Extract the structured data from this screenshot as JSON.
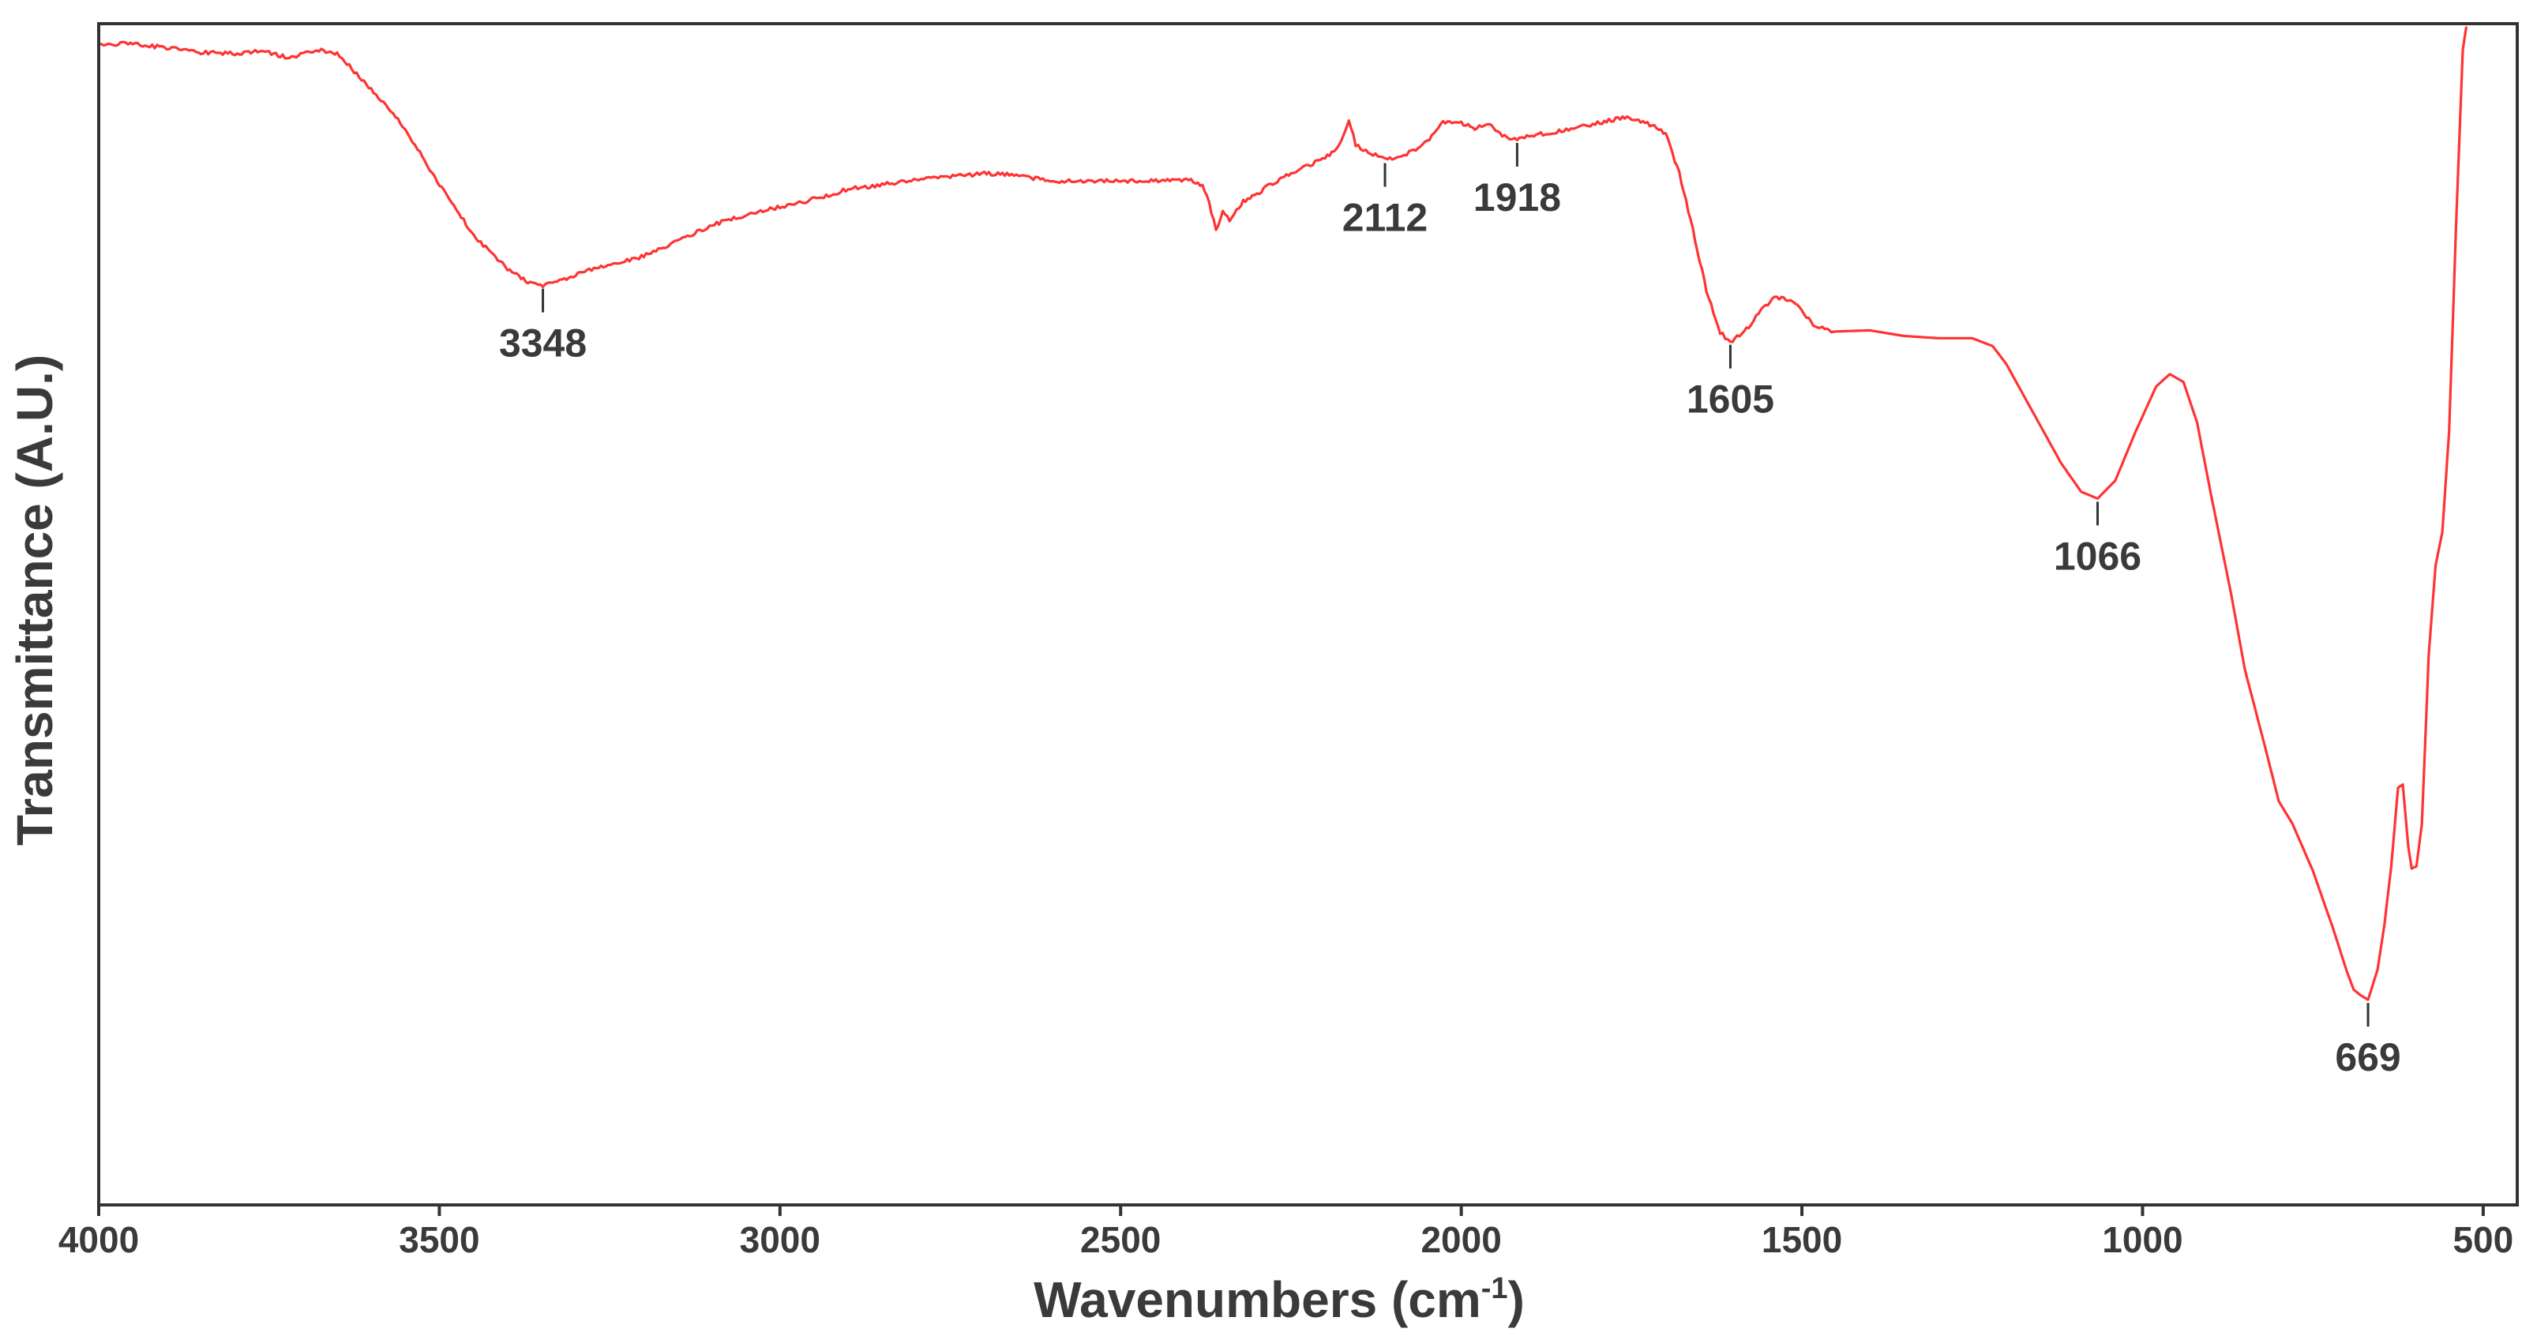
{
  "chart_data": {
    "type": "line",
    "title": "",
    "xlabel": "Wavenumbers (cm",
    "xlabel_sup": "-1",
    "xlabel_close": ")",
    "ylabel": "Transmittance (A.U.)",
    "xlim": [
      4000,
      450
    ],
    "x_reversed": true,
    "y_ticks_shown": false,
    "ylim": [
      0,
      100
    ],
    "grid": false,
    "x_ticks": [
      {
        "value": 4000,
        "label": "4000"
      },
      {
        "value": 3500,
        "label": "3500"
      },
      {
        "value": 3000,
        "label": "3000"
      },
      {
        "value": 2500,
        "label": "2500"
      },
      {
        "value": 2000,
        "label": "2000"
      },
      {
        "value": 1500,
        "label": "1500"
      },
      {
        "value": 1000,
        "label": "1000"
      },
      {
        "value": 500,
        "label": "500"
      }
    ],
    "series": [
      {
        "color": "#ff3333",
        "points": [
          [
            4000,
            98.5
          ],
          [
            3950,
            98.6
          ],
          [
            3900,
            98.2
          ],
          [
            3850,
            97.8
          ],
          [
            3800,
            97.7
          ],
          [
            3760,
            97.9
          ],
          [
            3720,
            97.3
          ],
          [
            3680,
            98.0
          ],
          [
            3650,
            97.7
          ],
          [
            3600,
            94.5
          ],
          [
            3550,
            91.0
          ],
          [
            3500,
            86.0
          ],
          [
            3450,
            81.5
          ],
          [
            3400,
            78.5
          ],
          [
            3370,
            77.3
          ],
          [
            3348,
            77.0
          ],
          [
            3320,
            77.5
          ],
          [
            3280,
            78.4
          ],
          [
            3200,
            79.6
          ],
          [
            3150,
            81.0
          ],
          [
            3100,
            82.4
          ],
          [
            3050,
            83.3
          ],
          [
            3000,
            84.0
          ],
          [
            2950,
            84.7
          ],
          [
            2900,
            85.6
          ],
          [
            2850,
            86.0
          ],
          [
            2800,
            86.4
          ],
          [
            2750,
            86.7
          ],
          [
            2700,
            87.0
          ],
          [
            2660,
            86.9
          ],
          [
            2600,
            86.3
          ],
          [
            2500,
            86.3
          ],
          [
            2400,
            86.4
          ],
          [
            2380,
            86.0
          ],
          [
            2370,
            84.3
          ],
          [
            2360,
            82.0
          ],
          [
            2350,
            83.5
          ],
          [
            2340,
            82.8
          ],
          [
            2320,
            84.5
          ],
          [
            2300,
            85.2
          ],
          [
            2280,
            86.0
          ],
          [
            2250,
            87.0
          ],
          [
            2200,
            88.4
          ],
          [
            2180,
            89.4
          ],
          [
            2165,
            91.8
          ],
          [
            2155,
            89.6
          ],
          [
            2140,
            89.0
          ],
          [
            2112,
            88.2
          ],
          [
            2080,
            88.7
          ],
          [
            2050,
            89.8
          ],
          [
            2030,
            91.5
          ],
          [
            2000,
            91.5
          ],
          [
            1980,
            91.0
          ],
          [
            1960,
            91.4
          ],
          [
            1940,
            90.3
          ],
          [
            1918,
            90.0
          ],
          [
            1900,
            90.4
          ],
          [
            1860,
            90.7
          ],
          [
            1800,
            91.5
          ],
          [
            1760,
            92.0
          ],
          [
            1720,
            91.3
          ],
          [
            1700,
            90.5
          ],
          [
            1680,
            87.0
          ],
          [
            1660,
            82.0
          ],
          [
            1640,
            76.5
          ],
          [
            1620,
            72.8
          ],
          [
            1605,
            72.0
          ],
          [
            1585,
            72.8
          ],
          [
            1560,
            74.8
          ],
          [
            1540,
            76.0
          ],
          [
            1520,
            75.8
          ],
          [
            1500,
            74.8
          ],
          [
            1480,
            73.3
          ],
          [
            1450,
            72.9
          ],
          [
            1400,
            73.0
          ],
          [
            1350,
            72.5
          ],
          [
            1300,
            72.3
          ],
          [
            1250,
            72.3
          ],
          [
            1220,
            71.6
          ],
          [
            1200,
            70.0
          ],
          [
            1150,
            64.5
          ],
          [
            1120,
            61.2
          ],
          [
            1090,
            58.6
          ],
          [
            1066,
            58.0
          ],
          [
            1040,
            59.6
          ],
          [
            1010,
            64.0
          ],
          [
            980,
            68.0
          ],
          [
            960,
            69.1
          ],
          [
            940,
            68.4
          ],
          [
            920,
            64.8
          ],
          [
            900,
            58.5
          ],
          [
            870,
            49.5
          ],
          [
            850,
            42.8
          ],
          [
            820,
            35.8
          ],
          [
            800,
            31.0
          ],
          [
            780,
            29.0
          ],
          [
            750,
            24.8
          ],
          [
            720,
            19.6
          ],
          [
            700,
            15.8
          ],
          [
            690,
            14.2
          ],
          [
            680,
            13.7
          ],
          [
            669,
            13.3
          ],
          [
            655,
            16.0
          ],
          [
            645,
            20.0
          ],
          [
            635,
            25.2
          ],
          [
            625,
            32.2
          ],
          [
            618,
            32.5
          ],
          [
            610,
            27.0
          ],
          [
            605,
            25.0
          ],
          [
            598,
            25.2
          ],
          [
            590,
            29.0
          ],
          [
            580,
            44.0
          ],
          [
            570,
            52.0
          ],
          [
            560,
            55.0
          ],
          [
            550,
            64.0
          ],
          [
            540,
            82.0
          ],
          [
            530,
            98.0
          ],
          [
            525,
            100.0
          ]
        ]
      }
    ],
    "annotations": [
      {
        "x": 3348,
        "label": "3348"
      },
      {
        "x": 2112,
        "label": "2112"
      },
      {
        "x": 1918,
        "label": "1918"
      },
      {
        "x": 1605,
        "label": "1605"
      },
      {
        "x": 1066,
        "label": "1066"
      },
      {
        "x": 669,
        "label": "669"
      }
    ]
  }
}
